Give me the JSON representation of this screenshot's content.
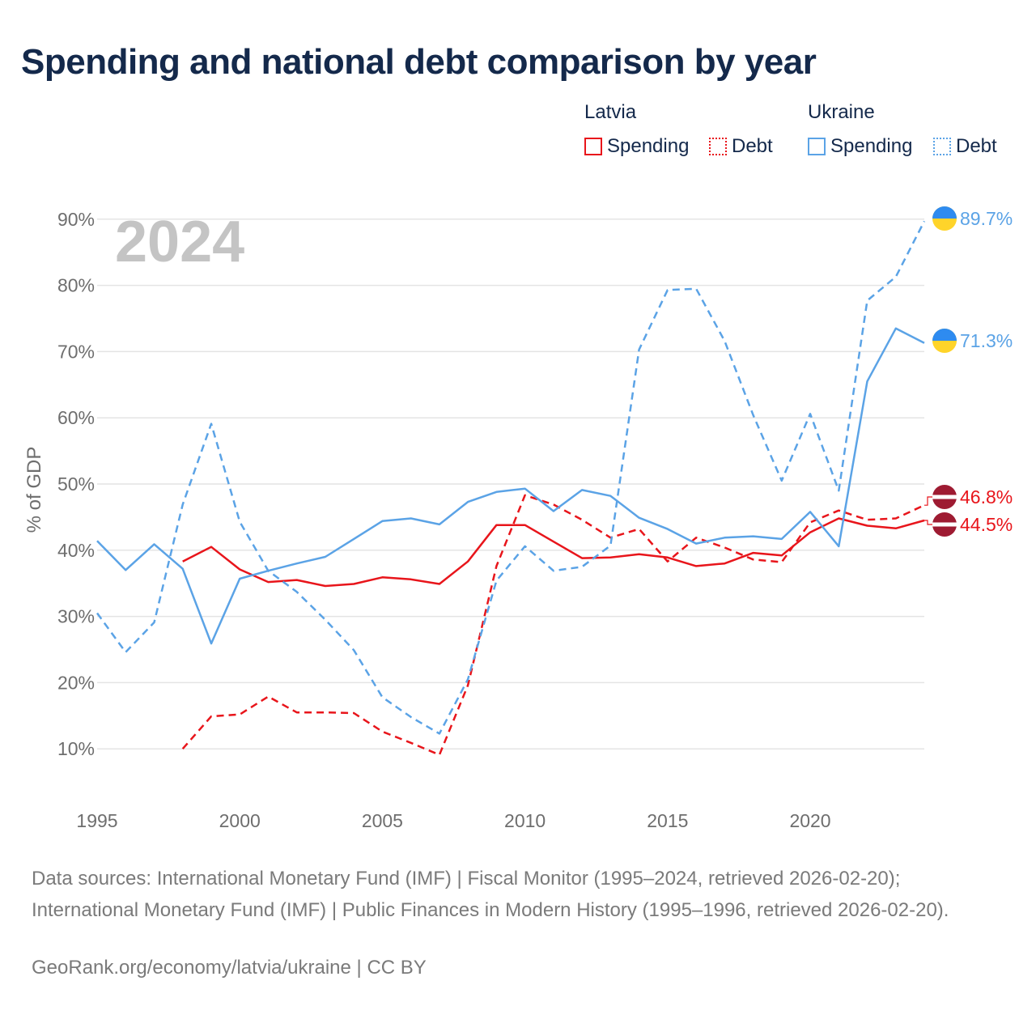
{
  "title": "Spending and national debt comparison by year",
  "legend": {
    "groups": [
      {
        "label": "Latvia",
        "items": [
          "Spending",
          "Debt"
        ]
      },
      {
        "label": "Ukraine",
        "items": [
          "Spending",
          "Debt"
        ]
      }
    ]
  },
  "footer": {
    "sources": "Data sources: International Monetary Fund (IMF) | Fiscal Monitor (1995–2024, retrieved 2026-02-20); International Monetary Fund (IMF) | Public Finances in Modern History (1995–1996, retrieved 2026-02-20).",
    "credit": "GeoRank.org/economy/latvia/ukraine | CC BY"
  },
  "colors": {
    "latvia": "#e8151b",
    "ukraine": "#5ba3e6",
    "title": "#14294b",
    "axis_text": "#6e6e6e",
    "grid": "#e4e4e4",
    "year_watermark": "#c4c4c4"
  },
  "chart_data": {
    "type": "line",
    "year_label": "2024",
    "ylabel": "% of GDP",
    "xlim": [
      1995,
      2024
    ],
    "ylim": [
      0,
      90
    ],
    "x_ticks": [
      1995,
      2000,
      2005,
      2010,
      2015,
      2020
    ],
    "y_ticks": [
      10,
      20,
      30,
      40,
      50,
      60,
      70,
      80,
      90
    ],
    "y_tick_labels": [
      "10%",
      "20%",
      "30%",
      "40%",
      "50%",
      "60%",
      "70%",
      "80%",
      "90%"
    ],
    "series": [
      {
        "name": "Latvia Spending",
        "country": "latvia",
        "style": "solid",
        "x": [
          1998,
          1999,
          2000,
          2001,
          2002,
          2003,
          2004,
          2005,
          2006,
          2007,
          2008,
          2009,
          2010,
          2011,
          2012,
          2013,
          2014,
          2015,
          2016,
          2017,
          2018,
          2019,
          2020,
          2021,
          2022,
          2023,
          2024
        ],
        "values": [
          38.3,
          40.5,
          37.1,
          35.2,
          35.5,
          34.6,
          34.9,
          35.9,
          35.6,
          34.9,
          38.3,
          43.8,
          43.8,
          41.3,
          38.8,
          38.9,
          39.4,
          38.9,
          37.6,
          38.0,
          39.6,
          39.2,
          42.7,
          44.8,
          43.7,
          43.3,
          44.5
        ],
        "end_label": "44.5%"
      },
      {
        "name": "Latvia Debt",
        "country": "latvia",
        "style": "dashed",
        "x": [
          1998,
          1999,
          2000,
          2001,
          2002,
          2003,
          2004,
          2005,
          2006,
          2007,
          2008,
          2009,
          2010,
          2011,
          2012,
          2013,
          2014,
          2015,
          2016,
          2017,
          2018,
          2019,
          2020,
          2021,
          2022,
          2023,
          2024
        ],
        "values": [
          10.0,
          14.9,
          15.2,
          17.9,
          15.5,
          15.5,
          15.4,
          12.6,
          10.9,
          9.1,
          19.6,
          37.6,
          48.3,
          46.9,
          44.6,
          41.9,
          43.2,
          38.3,
          41.9,
          40.4,
          38.6,
          38.2,
          44.2,
          46.0,
          44.6,
          44.8,
          46.8
        ],
        "end_label": "46.8%"
      },
      {
        "name": "Ukraine Spending",
        "country": "ukraine",
        "style": "solid",
        "x": [
          1995,
          1996,
          1997,
          1998,
          1999,
          2000,
          2001,
          2002,
          2003,
          2004,
          2005,
          2006,
          2007,
          2008,
          2009,
          2010,
          2011,
          2012,
          2013,
          2014,
          2015,
          2016,
          2017,
          2018,
          2019,
          2020,
          2021,
          2022,
          2023,
          2024
        ],
        "values": [
          41.4,
          37.0,
          40.9,
          37.2,
          25.9,
          35.7,
          36.9,
          38.0,
          39.0,
          41.7,
          44.4,
          44.8,
          43.9,
          47.3,
          48.8,
          49.3,
          45.9,
          49.1,
          48.2,
          44.9,
          43.2,
          41.0,
          41.9,
          42.1,
          41.7,
          45.8,
          40.6,
          65.5,
          73.5,
          71.3
        ],
        "end_label": "71.3%"
      },
      {
        "name": "Ukraine Debt",
        "country": "ukraine",
        "style": "dashed",
        "x": [
          1995,
          1996,
          1997,
          1998,
          1999,
          2000,
          2001,
          2002,
          2003,
          2004,
          2005,
          2006,
          2007,
          2008,
          2009,
          2010,
          2011,
          2012,
          2013,
          2014,
          2015,
          2016,
          2017,
          2018,
          2019,
          2020,
          2021,
          2022,
          2023,
          2024
        ],
        "values": [
          30.5,
          24.6,
          29.1,
          46.9,
          59.1,
          44.3,
          36.9,
          33.7,
          29.5,
          24.9,
          17.8,
          14.8,
          12.3,
          20.5,
          35.4,
          40.6,
          36.9,
          37.5,
          40.7,
          70.3,
          79.3,
          79.5,
          71.6,
          60.4,
          50.5,
          60.6,
          49.0,
          77.7,
          81.3,
          89.7
        ],
        "end_label": "89.7%"
      }
    ]
  }
}
